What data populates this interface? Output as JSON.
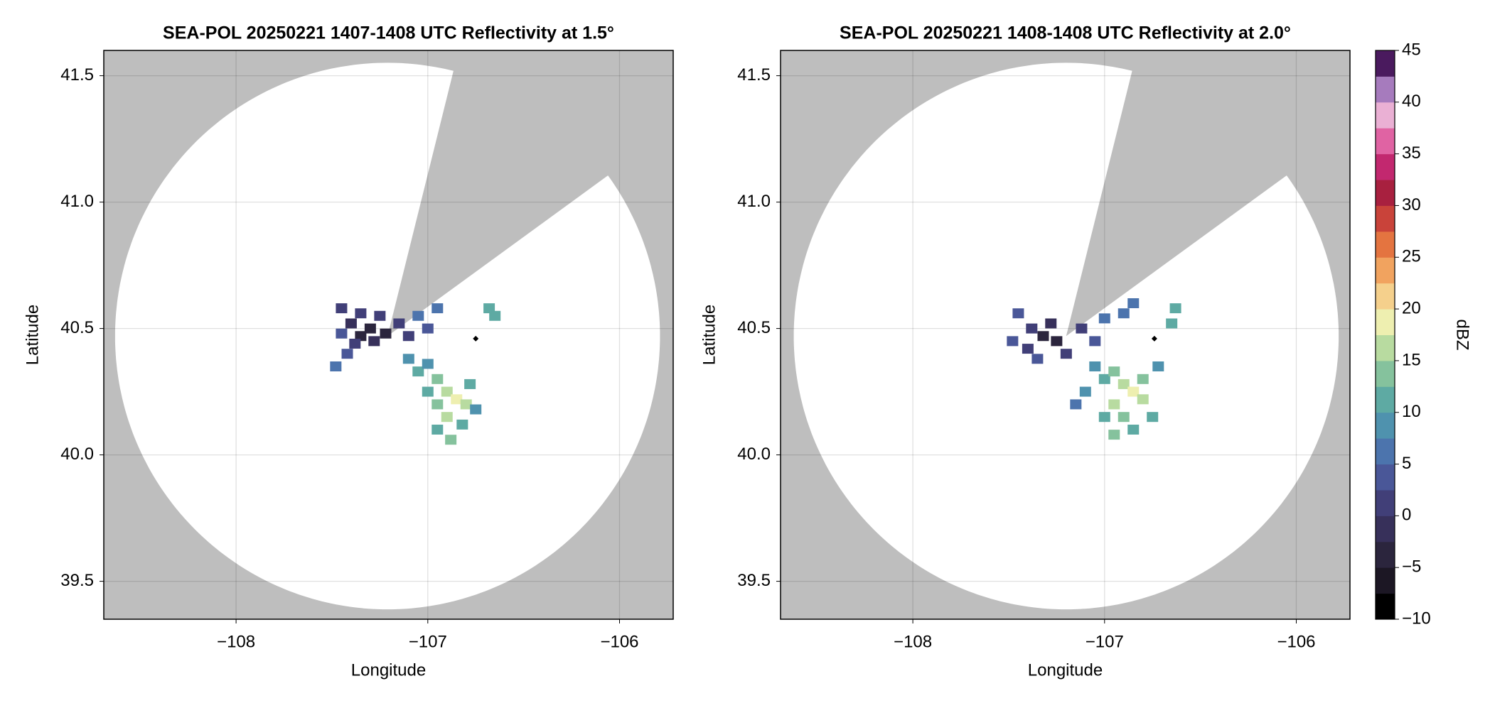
{
  "chart_data": [
    {
      "type": "radar",
      "title": "SEA-POL 20250221 1407-1408 UTC Reflectivity at 1.5°",
      "xlabel": "Longitude",
      "ylabel": "Latitude",
      "xlim": [
        -108.69,
        -105.72
      ],
      "ylim": [
        39.35,
        41.6
      ],
      "xticks": [
        {
          "value": -108,
          "label": "−108"
        },
        {
          "value": -107,
          "label": "−107"
        },
        {
          "value": -106,
          "label": "−106"
        }
      ],
      "yticks": [
        39.5,
        {
          "value": 40,
          "label": "40.0"
        },
        40.5,
        {
          "value": 41,
          "label": "41.0"
        },
        41.5
      ],
      "grid": true,
      "radar_lon": -107.21,
      "radar_lat": 40.47,
      "range_km": 120,
      "blocked_azimuth": [
        14,
        54
      ],
      "marker": {
        "x": -106.75,
        "y": 40.46
      },
      "x": [
        -107.45,
        -107.4,
        -107.35,
        -107.3,
        -107.28,
        -107.38,
        -107.45,
        -107.42,
        -107.48,
        -107.35,
        -107.25,
        -107.22,
        -107.15,
        -107.05,
        -106.95,
        -107.1,
        -107.0,
        -107.1,
        -107.05,
        -107.0,
        -106.95,
        -106.9,
        -106.85,
        -106.8,
        -106.95,
        -106.9,
        -106.82,
        -106.95,
        -106.88,
        -107.0,
        -106.78,
        -106.75,
        -106.65,
        -106.68
      ],
      "y": [
        40.58,
        40.52,
        40.47,
        40.5,
        40.45,
        40.44,
        40.48,
        40.4,
        40.35,
        40.56,
        40.55,
        40.48,
        40.52,
        40.55,
        40.58,
        40.47,
        40.5,
        40.38,
        40.33,
        40.36,
        40.3,
        40.25,
        40.22,
        40.2,
        40.2,
        40.15,
        40.12,
        40.1,
        40.06,
        40.25,
        40.28,
        40.18,
        40.55,
        40.58
      ],
      "values": [
        2,
        -1,
        -3,
        -4,
        -2,
        0,
        3,
        4,
        6,
        1,
        0,
        -5,
        2,
        5,
        6,
        0,
        4,
        8,
        11,
        9,
        13,
        15,
        19,
        17,
        14,
        16,
        12,
        11,
        13,
        12,
        10,
        9,
        10,
        12
      ]
    },
    {
      "type": "radar",
      "title": "SEA-POL 20250221 1408-1408 UTC Reflectivity at 2.0°",
      "xlabel": "Longitude",
      "ylabel": "Latitude",
      "xlim": [
        -108.69,
        -105.72
      ],
      "ylim": [
        39.35,
        41.6
      ],
      "xticks": [
        {
          "value": -108,
          "label": "−108"
        },
        {
          "value": -107,
          "label": "−107"
        },
        {
          "value": -106,
          "label": "−106"
        }
      ],
      "yticks": [
        39.5,
        {
          "value": 40,
          "label": "40.0"
        },
        40.5,
        {
          "value": 41,
          "label": "41.0"
        },
        41.5
      ],
      "grid": true,
      "radar_lon": -107.2,
      "radar_lat": 40.47,
      "range_km": 120,
      "blocked_azimuth": [
        14,
        54
      ],
      "marker": {
        "x": -106.74,
        "y": 40.46
      },
      "x": [
        -107.45,
        -107.38,
        -107.32,
        -107.28,
        -107.25,
        -107.4,
        -107.48,
        -107.35,
        -107.2,
        -107.12,
        -107.0,
        -106.9,
        -106.85,
        -107.05,
        -107.05,
        -107.0,
        -106.95,
        -106.9,
        -106.85,
        -106.8,
        -106.95,
        -106.9,
        -106.85,
        -106.95,
        -107.0,
        -107.1,
        -107.15,
        -106.75,
        -106.8,
        -106.65,
        -106.63,
        -106.72
      ],
      "y": [
        40.56,
        40.5,
        40.47,
        40.52,
        40.45,
        40.42,
        40.45,
        40.38,
        40.4,
        40.5,
        40.54,
        40.56,
        40.6,
        40.45,
        40.35,
        40.3,
        40.33,
        40.28,
        40.25,
        40.22,
        40.2,
        40.15,
        40.1,
        40.08,
        40.15,
        40.25,
        40.2,
        40.15,
        40.3,
        40.52,
        40.58,
        40.35
      ],
      "values": [
        3,
        0,
        -3,
        -2,
        -4,
        1,
        4,
        3,
        0,
        2,
        6,
        7,
        5,
        4,
        9,
        12,
        14,
        17,
        18,
        15,
        16,
        13,
        12,
        14,
        11,
        8,
        7,
        10,
        13,
        10,
        11,
        9
      ]
    },
    {
      "type": "colorbar",
      "label": "dBZ",
      "ylim": [
        -10,
        45
      ],
      "yticks": [
        {
          "value": -10,
          "label": "−10"
        },
        {
          "value": -5,
          "label": "−5"
        },
        0,
        5,
        10,
        15,
        20,
        25,
        30,
        35,
        40,
        45
      ],
      "colors": [
        "#000000",
        "#1c1724",
        "#2b253d",
        "#37305a",
        "#413f78",
        "#4a5798",
        "#4c74ad",
        "#4f92ae",
        "#5eaaa3",
        "#85c29d",
        "#b8dba0",
        "#eeefb0",
        "#f5d08c",
        "#f1a35f",
        "#e47440",
        "#c9433a",
        "#a8203f",
        "#c2286f",
        "#e063a3",
        "#eab0d4",
        "#a67bbd",
        "#4a1a5e"
      ]
    }
  ]
}
